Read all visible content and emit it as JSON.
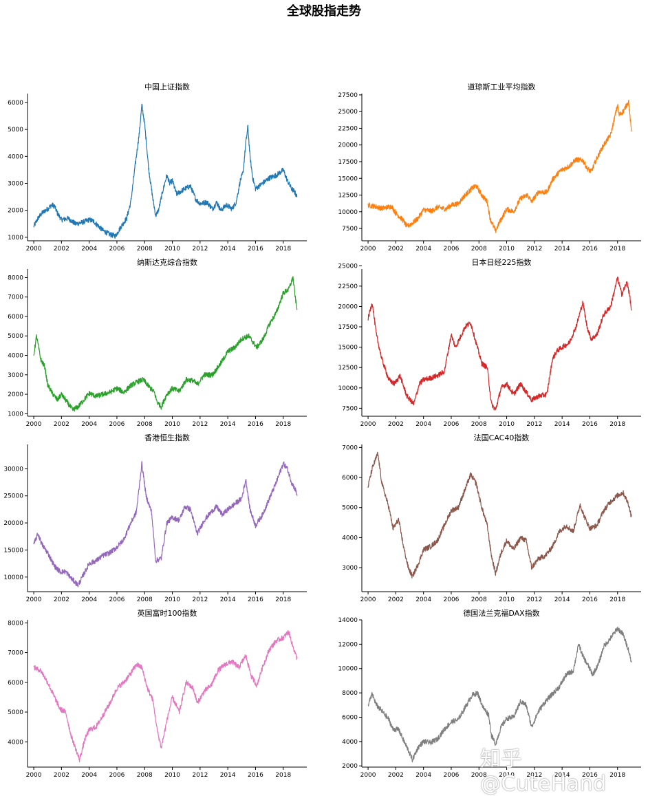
{
  "figure": {
    "suptitle": "全球股指走势",
    "watermark": "知乎 @CuteHand"
  },
  "chart_data": [
    {
      "type": "line",
      "title": "中国上证指数",
      "color": "#1f77b4",
      "xlim": [
        1999.55,
        2019.7
      ],
      "ylim": [
        870,
        6330
      ],
      "x_ticks": [
        2000,
        2002,
        2004,
        2006,
        2008,
        2010,
        2012,
        2014,
        2016,
        2018
      ],
      "y_ticks": [
        1000,
        2000,
        3000,
        4000,
        5000,
        6000
      ],
      "x": [
        2000,
        2000.3,
        2000.6,
        2001,
        2001.3,
        2001.5,
        2001.7,
        2002,
        2002.5,
        2003,
        2003.5,
        2004,
        2004.3,
        2004.7,
        2005,
        2005.5,
        2005.9,
        2006.3,
        2006.7,
        2007,
        2007.3,
        2007.6,
        2007.8,
        2008,
        2008.3,
        2008.6,
        2008.8,
        2009,
        2009.3,
        2009.6,
        2009.8,
        2010,
        2010.3,
        2010.6,
        2010.9,
        2011.3,
        2011.7,
        2012,
        2012.5,
        2012.9,
        2013.2,
        2013.5,
        2013.9,
        2014.3,
        2014.6,
        2014.9,
        2015.1,
        2015.3,
        2015.45,
        2015.6,
        2015.8,
        2016,
        2016.5,
        2017,
        2017.5,
        2018,
        2018.3,
        2018.6,
        2018.8,
        2019
      ],
      "y": [
        1400,
        1700,
        1900,
        2050,
        2200,
        2150,
        1900,
        1650,
        1700,
        1500,
        1550,
        1650,
        1600,
        1400,
        1250,
        1100,
        1050,
        1400,
        1700,
        2300,
        3600,
        4800,
        5900,
        5200,
        3500,
        2400,
        1800,
        2000,
        2700,
        3300,
        3000,
        3100,
        2600,
        2700,
        2800,
        2900,
        2400,
        2250,
        2300,
        2050,
        2300,
        2000,
        2200,
        2050,
        2300,
        3100,
        3400,
        4500,
        5100,
        4000,
        3200,
        2800,
        3000,
        3200,
        3300,
        3500,
        3100,
        2800,
        2700,
        2500
      ]
    },
    {
      "type": "line",
      "title": "道琼斯工业平均指数",
      "color": "#ff7f0e",
      "xlim": [
        1999.55,
        2019.7
      ],
      "ylim": [
        5650,
        27700
      ],
      "x_ticks": [
        2000,
        2002,
        2004,
        2006,
        2008,
        2010,
        2012,
        2014,
        2016,
        2018
      ],
      "y_ticks": [
        7500,
        10000,
        12500,
        15000,
        17500,
        20000,
        22500,
        25000,
        27500
      ],
      "x": [
        2000,
        2000.5,
        2001,
        2001.7,
        2002,
        2002.5,
        2002.8,
        2003.2,
        2003.6,
        2004,
        2004.6,
        2005,
        2005.6,
        2006,
        2006.5,
        2007,
        2007.5,
        2007.8,
        2008.2,
        2008.6,
        2008.8,
        2009.2,
        2009.5,
        2010,
        2010.5,
        2011,
        2011.5,
        2011.8,
        2012.3,
        2012.9,
        2013.3,
        2013.9,
        2014.5,
        2015,
        2015.5,
        2015.8,
        2016.1,
        2016.5,
        2017,
        2017.5,
        2018,
        2018.1,
        2018.4,
        2018.8,
        2019
      ],
      "y": [
        11000,
        10800,
        10500,
        10800,
        9800,
        8800,
        7800,
        8300,
        9000,
        10300,
        10100,
        10700,
        10400,
        11000,
        11200,
        12500,
        13500,
        13900,
        12500,
        11500,
        9000,
        7100,
        8500,
        10400,
        10000,
        12000,
        12500,
        11500,
        13000,
        12900,
        14800,
        16200,
        16800,
        17800,
        17700,
        16500,
        16000,
        18000,
        20000,
        21500,
        26000,
        24500,
        25000,
        26500,
        22000
      ]
    },
    {
      "type": "line",
      "title": "纳斯达克综合指数",
      "color": "#2ca02c",
      "xlim": [
        1999.55,
        2019.7
      ],
      "ylim": [
        870,
        8440
      ],
      "x_ticks": [
        2000,
        2002,
        2004,
        2006,
        2008,
        2010,
        2012,
        2014,
        2016,
        2018
      ],
      "y_ticks": [
        1000,
        2000,
        3000,
        4000,
        5000,
        6000,
        7000,
        8000
      ],
      "x": [
        2000,
        2000.2,
        2000.5,
        2000.8,
        2001,
        2001.3,
        2001.7,
        2002,
        2002.5,
        2002.8,
        2003.2,
        2003.6,
        2004,
        2004.5,
        2005,
        2005.5,
        2006,
        2006.5,
        2007,
        2007.5,
        2007.9,
        2008.3,
        2008.7,
        2008.9,
        2009.2,
        2009.6,
        2010,
        2010.5,
        2011,
        2011.5,
        2011.8,
        2012.3,
        2012.9,
        2013.5,
        2014,
        2014.5,
        2015,
        2015.5,
        2016.1,
        2016.6,
        2017,
        2017.5,
        2018,
        2018.4,
        2018.7,
        2018.9,
        2019
      ],
      "y": [
        4000,
        5000,
        3800,
        3400,
        2500,
        2100,
        1700,
        2000,
        1500,
        1200,
        1350,
        1700,
        2050,
        1900,
        2000,
        2100,
        2300,
        2100,
        2450,
        2650,
        2750,
        2400,
        2100,
        1600,
        1350,
        2000,
        2300,
        2150,
        2750,
        2700,
        2500,
        3000,
        3000,
        3600,
        4200,
        4400,
        4850,
        5000,
        4400,
        4900,
        5600,
        6200,
        7200,
        7400,
        8000,
        6800,
        6400
      ]
    },
    {
      "type": "line",
      "title": "日本日经225指数",
      "color": "#d62728",
      "xlim": [
        1999.55,
        2019.7
      ],
      "ylim": [
        6520,
        24600
      ],
      "x_ticks": [
        2000,
        2002,
        2004,
        2006,
        2008,
        2010,
        2012,
        2014,
        2016,
        2018
      ],
      "y_ticks": [
        7500,
        10000,
        12500,
        15000,
        17500,
        20000,
        22500,
        25000
      ],
      "x": [
        2000,
        2000.3,
        2000.6,
        2001,
        2001.5,
        2001.9,
        2002.3,
        2002.8,
        2003.3,
        2003.7,
        2004,
        2004.5,
        2005,
        2005.5,
        2006,
        2006.3,
        2006.6,
        2007,
        2007.4,
        2007.8,
        2008.2,
        2008.6,
        2008.9,
        2009.2,
        2009.6,
        2010,
        2010.5,
        2011,
        2011.4,
        2011.8,
        2012.3,
        2012.9,
        2013.3,
        2013.6,
        2014,
        2014.5,
        2015,
        2015.5,
        2015.8,
        2016.1,
        2016.5,
        2017,
        2017.5,
        2018,
        2018.3,
        2018.7,
        2018.9,
        2019
      ],
      "y": [
        18500,
        20500,
        16500,
        13500,
        11000,
        10500,
        11500,
        9000,
        8000,
        10500,
        11000,
        11200,
        11500,
        12000,
        16500,
        15000,
        16000,
        17500,
        18000,
        15500,
        13000,
        12500,
        8000,
        7300,
        10000,
        10500,
        9200,
        10500,
        9500,
        8500,
        9000,
        9200,
        13500,
        14500,
        15000,
        15500,
        17500,
        20500,
        17500,
        16000,
        16500,
        19000,
        20000,
        23500,
        21500,
        23000,
        21000,
        19500
      ]
    },
    {
      "type": "line",
      "title": "香港恒生指数",
      "color": "#9467bd",
      "xlim": [
        1999.55,
        2019.7
      ],
      "ylim": [
        7300,
        34500
      ],
      "x_ticks": [
        2000,
        2002,
        2004,
        2006,
        2008,
        2010,
        2012,
        2014,
        2016,
        2018
      ],
      "y_ticks": [
        10000,
        15000,
        20000,
        25000,
        30000
      ],
      "x": [
        2000,
        2000.3,
        2000.6,
        2001,
        2001.5,
        2001.9,
        2002.3,
        2002.8,
        2003.2,
        2003.5,
        2004,
        2004.5,
        2005,
        2005.5,
        2006,
        2006.5,
        2007,
        2007.4,
        2007.8,
        2008.1,
        2008.5,
        2008.8,
        2009.2,
        2009.6,
        2010,
        2010.5,
        2010.9,
        2011.3,
        2011.8,
        2012.3,
        2012.8,
        2013.2,
        2013.6,
        2014,
        2014.5,
        2015,
        2015.3,
        2015.6,
        2016,
        2016.5,
        2017,
        2017.5,
        2018,
        2018.3,
        2018.6,
        2018.9,
        2019
      ],
      "y": [
        16000,
        18000,
        16000,
        14500,
        12000,
        11000,
        11000,
        9500,
        8500,
        10000,
        12500,
        13000,
        14000,
        14500,
        15500,
        17000,
        20000,
        22000,
        31000,
        25000,
        22000,
        13000,
        13500,
        20000,
        21000,
        20500,
        23000,
        22500,
        18000,
        20500,
        22000,
        23000,
        21500,
        22500,
        23500,
        24500,
        28000,
        22500,
        19500,
        21500,
        24500,
        27500,
        31000,
        30000,
        27500,
        26000,
        25000
      ]
    },
    {
      "type": "line",
      "title": "法国CAC40指数",
      "color": "#8c564b",
      "xlim": [
        1999.55,
        2019.7
      ],
      "ylim": [
        2200,
        7100
      ],
      "x_ticks": [
        2000,
        2002,
        2004,
        2006,
        2008,
        2010,
        2012,
        2014,
        2016,
        2018
      ],
      "y_ticks": [
        3000,
        4000,
        5000,
        6000,
        7000
      ],
      "x": [
        2000,
        2000.3,
        2000.7,
        2001,
        2001.5,
        2001.8,
        2002.2,
        2002.6,
        2002.9,
        2003.2,
        2003.6,
        2004,
        2004.5,
        2005,
        2005.5,
        2006,
        2006.5,
        2007,
        2007.4,
        2007.8,
        2008.2,
        2008.6,
        2008.9,
        2009.2,
        2009.6,
        2010,
        2010.5,
        2011,
        2011.4,
        2011.8,
        2012.3,
        2012.8,
        2013.3,
        2013.8,
        2014.3,
        2014.8,
        2015.3,
        2015.6,
        2016,
        2016.5,
        2017,
        2017.5,
        2018,
        2018.4,
        2018.8,
        2019
      ],
      "y": [
        5700,
        6300,
        6800,
        5800,
        5000,
        4300,
        4600,
        3600,
        3000,
        2700,
        3100,
        3600,
        3700,
        3900,
        4400,
        4900,
        5000,
        5600,
        6100,
        5800,
        5000,
        4400,
        3400,
        2800,
        3500,
        3900,
        3600,
        4000,
        3900,
        3000,
        3300,
        3400,
        3700,
        4200,
        4400,
        4200,
        5100,
        4700,
        4300,
        4400,
        4900,
        5200,
        5400,
        5500,
        5100,
        4700
      ]
    },
    {
      "type": "line",
      "title": "英国富时100指数",
      "color": "#e377c2",
      "xlim": [
        1999.55,
        2019.7
      ],
      "ylim": [
        3150,
        8100
      ],
      "x_ticks": [
        2000,
        2002,
        2004,
        2006,
        2008,
        2010,
        2012,
        2014,
        2016,
        2018
      ],
      "y_ticks": [
        4000,
        5000,
        6000,
        7000,
        8000
      ],
      "x": [
        2000,
        2000.5,
        2001,
        2001.5,
        2001.9,
        2002.3,
        2002.7,
        2003,
        2003.3,
        2003.7,
        2004,
        2004.5,
        2005,
        2005.5,
        2006,
        2006.5,
        2007,
        2007.4,
        2007.8,
        2008.2,
        2008.6,
        2008.9,
        2009.2,
        2009.6,
        2010,
        2010.5,
        2011,
        2011.5,
        2011.8,
        2012.3,
        2012.8,
        2013.3,
        2013.8,
        2014.3,
        2014.8,
        2015.3,
        2015.7,
        2016.1,
        2016.5,
        2017,
        2017.5,
        2018,
        2018.4,
        2018.7,
        2019
      ],
      "y": [
        6500,
        6400,
        6000,
        5500,
        5100,
        5000,
        4200,
        3800,
        3400,
        4100,
        4400,
        4500,
        4900,
        5300,
        5800,
        6000,
        6300,
        6600,
        6500,
        5800,
        5400,
        4400,
        3800,
        4700,
        5500,
        5000,
        6000,
        5800,
        5300,
        5700,
        5900,
        6400,
        6600,
        6700,
        6500,
        6900,
        6200,
        5900,
        6500,
        7100,
        7400,
        7500,
        7700,
        7200,
        6800
      ]
    },
    {
      "type": "line",
      "title": "德国法兰克福DAX指数",
      "color": "#7f7f7f",
      "xlim": [
        1999.55,
        2019.7
      ],
      "ylim": [
        1900,
        14000
      ],
      "x_ticks": [
        2000,
        2002,
        2004,
        2006,
        2008,
        2010,
        2012,
        2014,
        2016,
        2018
      ],
      "y_ticks": [
        2000,
        4000,
        6000,
        8000,
        10000,
        12000,
        14000
      ],
      "x": [
        2000,
        2000.3,
        2000.6,
        2001,
        2001.5,
        2001.8,
        2002.2,
        2002.6,
        2002.9,
        2003.2,
        2003.6,
        2004,
        2004.5,
        2005,
        2005.5,
        2006,
        2006.5,
        2007,
        2007.5,
        2007.9,
        2008.3,
        2008.7,
        2008.9,
        2009.2,
        2009.6,
        2010,
        2010.5,
        2011,
        2011.4,
        2011.8,
        2012.3,
        2012.8,
        2013.3,
        2013.8,
        2014.3,
        2014.8,
        2015.2,
        2015.5,
        2015.9,
        2016.2,
        2016.6,
        2017,
        2017.5,
        2018,
        2018.4,
        2018.8,
        2019
      ],
      "y": [
        7000,
        7900,
        7000,
        6500,
        5800,
        5000,
        5000,
        4000,
        3300,
        2500,
        3500,
        4000,
        3900,
        4200,
        5000,
        5600,
        5800,
        6800,
        7800,
        8000,
        6800,
        6200,
        4500,
        3800,
        5200,
        5900,
        6000,
        7300,
        7000,
        5200,
        6500,
        7300,
        7900,
        8500,
        9500,
        9800,
        12000,
        11000,
        10200,
        9500,
        10300,
        11800,
        12500,
        13300,
        12800,
        11500,
        10500
      ]
    }
  ]
}
